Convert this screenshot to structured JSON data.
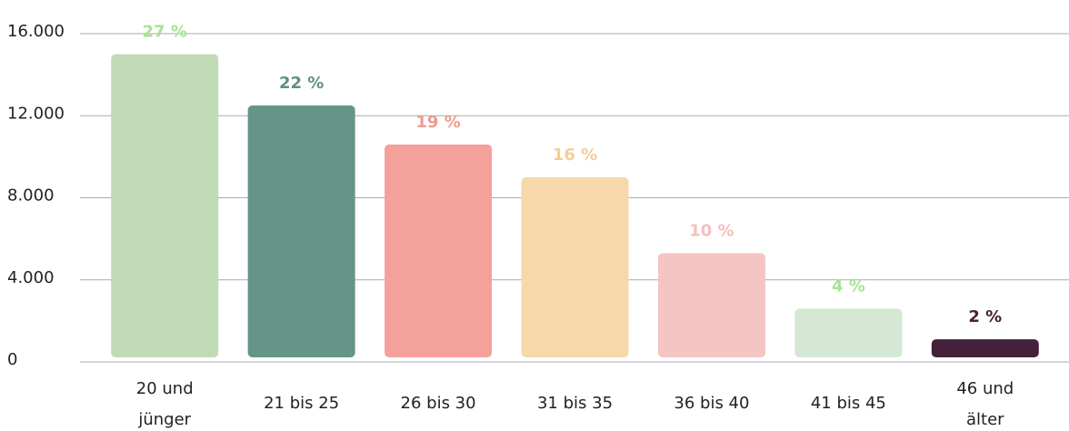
{
  "chart_data": {
    "type": "bar",
    "categories": [
      "20 und jünger",
      "21 bis 25",
      "26 bis 30",
      "31 bis 35",
      "36 bis 40",
      "41 bis 45",
      "46 und älter"
    ],
    "values": [
      15000,
      12500,
      10600,
      9000,
      5300,
      2600,
      1100
    ],
    "colors": [
      "#c2dbb7",
      "#659588",
      "#f4a19c",
      "#f7d8aa",
      "#f4c5c3",
      "#d5e8d4",
      "#45203a"
    ],
    "shares": [
      {
        "value": 27,
        "label": "27 %"
      },
      {
        "value": 22,
        "label": "22 %"
      },
      {
        "value": 19,
        "label": "19 %"
      },
      {
        "value": 16,
        "label": "16 %"
      },
      {
        "value": 10,
        "label": "10 %"
      },
      {
        "value": 4,
        "label": "4 %"
      },
      {
        "value": 2,
        "label": "2 %"
      }
    ],
    "share_colors": [
      "#a5e495",
      "#5f9080",
      "#ef9a8f",
      "#f5cd95",
      "#f3c0bd",
      "#a5e495",
      "#4a2038"
    ],
    "ylim": [
      0,
      16000
    ],
    "yticks": [
      0,
      {
        "value": 4000,
        "label": "4.000"
      },
      {
        "value": 8000,
        "label": "8.000"
      },
      {
        "value": 12000,
        "label": "12.000"
      },
      {
        "value": 16000,
        "label": "16.000"
      }
    ],
    "grid": true
  }
}
